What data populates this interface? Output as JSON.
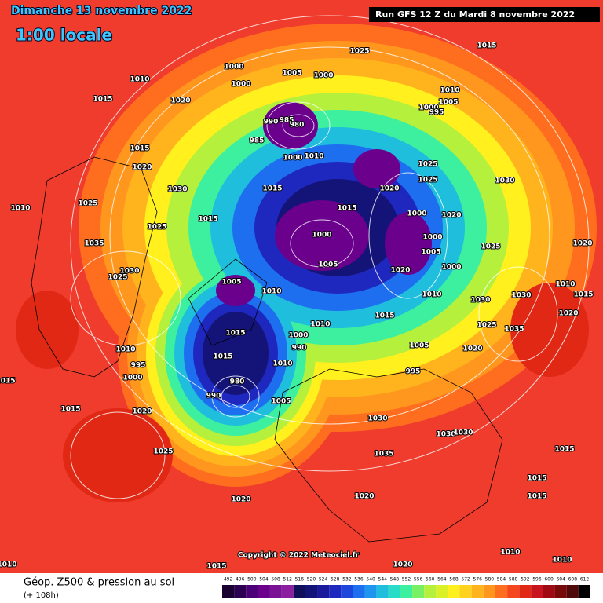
{
  "header": {
    "date": "Dimanche 13 novembre 2022",
    "time": "1:00 locale",
    "run": "Run GFS 12 Z du Mardi 8 novembre 2022"
  },
  "copyright": "Copyright © 2022 Meteociel.fr",
  "footer": {
    "title": "Géop. Z500 & pression au sol",
    "lead": "(+ 108h)"
  },
  "color_scale": {
    "values": [
      492,
      496,
      500,
      504,
      508,
      512,
      516,
      520,
      524,
      528,
      532,
      536,
      540,
      544,
      548,
      552,
      556,
      560,
      564,
      568,
      572,
      576,
      580,
      584,
      588,
      592,
      596,
      600,
      604,
      608,
      612
    ],
    "colors": [
      "#1a0030",
      "#2b0050",
      "#4b0078",
      "#6a008c",
      "#7a1296",
      "#8c1ea0",
      "#10105a",
      "#141478",
      "#1a1a9a",
      "#1e28be",
      "#1e46dc",
      "#1e6ef0",
      "#1e96f0",
      "#1ebedc",
      "#28dcc8",
      "#3cf0a0",
      "#78f064",
      "#b4f03c",
      "#dcf028",
      "#fff01e",
      "#ffd21e",
      "#ffb41e",
      "#ff961e",
      "#ff6e1e",
      "#f5461e",
      "#e12814",
      "#c8141e",
      "#a00a14",
      "#780a0a",
      "#500a0a",
      "#000000"
    ]
  },
  "isobar_labels": [
    1015,
    1025,
    1000,
    1000,
    1005,
    1000,
    1010,
    1015,
    1020,
    1010,
    1005,
    1000,
    995,
    990,
    985,
    980,
    985,
    1015,
    1000,
    1010,
    1020,
    1025,
    1025,
    1030,
    1015,
    1020,
    1030,
    1010,
    1025,
    1015,
    1000,
    1020,
    1015,
    1025,
    1000,
    1000,
    1035,
    1025,
    1020,
    1005,
    1030,
    1005,
    1000,
    1020,
    1025,
    1005,
    1010,
    1010,
    1010,
    1030,
    1030,
    1015,
    1020,
    1015,
    1025,
    1035,
    1010,
    1015,
    1000,
    990,
    1010,
    1005,
    1020,
    1015,
    1010,
    995,
    995,
    1000,
    1015,
    980,
    990,
    1005,
    1015,
    1020,
    1030,
    1030,
    1030,
    1025,
    1035,
    1015,
    1015,
    1020,
    1020,
    1015,
    1010,
    1010,
    1010,
    1020,
    1015
  ]
}
